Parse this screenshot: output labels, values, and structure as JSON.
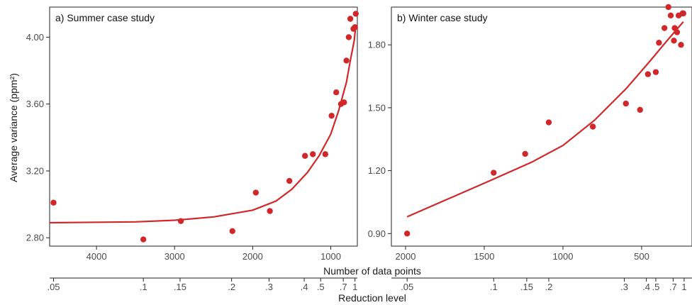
{
  "figure": {
    "xlabel": "Number of data points",
    "red_label": "Reduction level",
    "ylabel": "Average variance (ppm²)",
    "colors": {
      "series": "#d0282a",
      "axis": "#222222",
      "tick_text": "#4a4a4a"
    }
  },
  "chart_data": [
    {
      "type": "scatter",
      "title": "a) Summer case study",
      "xlabel": "Number of data points",
      "ylabel": "Average variance (ppm²)",
      "x_reversed": true,
      "xlim": [
        4600,
        660
      ],
      "ylim": [
        2.75,
        4.18
      ],
      "x_ticks": [
        4000,
        3000,
        2000,
        1000
      ],
      "x_tick_labels": [
        "4000",
        "3000",
        "2000",
        "1000"
      ],
      "y_ticks": [
        2.8,
        3.2,
        3.6,
        4.0
      ],
      "y_tick_labels": [
        "2.80",
        "3.20",
        "3.60",
        "4.00"
      ],
      "reduction_ticks": [
        {
          "label": ".05",
          "x": 4550
        },
        {
          "label": ".1",
          "x": 3400
        },
        {
          "label": ".15",
          "x": 2930
        },
        {
          "label": ".2",
          "x": 2270
        },
        {
          "label": ".3",
          "x": 1790
        },
        {
          "label": ".4",
          "x": 1340
        },
        {
          "label": ".5",
          "x": 1130
        },
        {
          "label": ".7",
          "x": 840
        },
        {
          "label": "1",
          "x": 690
        }
      ],
      "points": [
        [
          4550,
          3.01
        ],
        [
          3400,
          2.79
        ],
        [
          2920,
          2.9
        ],
        [
          2260,
          2.84
        ],
        [
          1960,
          3.07
        ],
        [
          1780,
          2.96
        ],
        [
          1530,
          3.14
        ],
        [
          1330,
          3.29
        ],
        [
          1230,
          3.3
        ],
        [
          1070,
          3.3
        ],
        [
          990,
          3.53
        ],
        [
          930,
          3.67
        ],
        [
          870,
          3.6
        ],
        [
          830,
          3.61
        ],
        [
          800,
          3.86
        ],
        [
          770,
          4.0
        ],
        [
          750,
          4.11
        ],
        [
          710,
          4.05
        ],
        [
          690,
          4.06
        ],
        [
          680,
          4.14
        ]
      ],
      "fit_line": [
        [
          4600,
          2.89
        ],
        [
          3500,
          2.895
        ],
        [
          3000,
          2.905
        ],
        [
          2500,
          2.925
        ],
        [
          2000,
          2.965
        ],
        [
          1700,
          3.02
        ],
        [
          1500,
          3.09
        ],
        [
          1300,
          3.19
        ],
        [
          1150,
          3.29
        ],
        [
          1000,
          3.42
        ],
        [
          900,
          3.56
        ],
        [
          800,
          3.73
        ],
        [
          750,
          3.86
        ],
        [
          700,
          3.98
        ],
        [
          680,
          4.07
        ]
      ]
    },
    {
      "type": "scatter",
      "title": "b) Winter case study",
      "xlabel": "Number of data points",
      "ylabel": "",
      "x_reversed": true,
      "xlim": [
        2090,
        180
      ],
      "ylim": [
        0.84,
        1.98
      ],
      "x_ticks": [
        2000,
        1500,
        1000,
        500
      ],
      "x_tick_labels": [
        "2000",
        "1500",
        "1000",
        "500"
      ],
      "y_ticks": [
        0.9,
        1.2,
        1.5,
        1.8
      ],
      "y_tick_labels": [
        "0.90",
        "1.20",
        "1.50",
        "1.80"
      ],
      "reduction_ticks": [
        {
          "label": ".05",
          "x": 1990
        },
        {
          "label": ".1",
          "x": 1440
        },
        {
          "label": ".15",
          "x": 1230
        },
        {
          "label": ".2",
          "x": 1090
        },
        {
          "label": ".3",
          "x": 610
        },
        {
          "label": ".4",
          "x": 470
        },
        {
          "label": ".5",
          "x": 410
        },
        {
          "label": ".7",
          "x": 300
        },
        {
          "label": "1",
          "x": 230
        }
      ],
      "points": [
        [
          1990,
          0.9
        ],
        [
          1440,
          1.19
        ],
        [
          1240,
          1.28
        ],
        [
          1090,
          1.43
        ],
        [
          810,
          1.41
        ],
        [
          600,
          1.52
        ],
        [
          510,
          1.49
        ],
        [
          460,
          1.66
        ],
        [
          410,
          1.67
        ],
        [
          390,
          1.81
        ],
        [
          355,
          1.88
        ],
        [
          330,
          1.98
        ],
        [
          315,
          1.94
        ],
        [
          295,
          1.82
        ],
        [
          290,
          1.88
        ],
        [
          275,
          1.86
        ],
        [
          265,
          1.94
        ],
        [
          250,
          1.8
        ],
        [
          240,
          1.95
        ],
        [
          235,
          1.95
        ]
      ],
      "fit_line": [
        [
          1990,
          0.98
        ],
        [
          1500,
          1.14
        ],
        [
          1200,
          1.24
        ],
        [
          1000,
          1.32
        ],
        [
          800,
          1.44
        ],
        [
          600,
          1.59
        ],
        [
          450,
          1.72
        ],
        [
          350,
          1.81
        ],
        [
          270,
          1.88
        ],
        [
          235,
          1.91
        ]
      ]
    }
  ]
}
